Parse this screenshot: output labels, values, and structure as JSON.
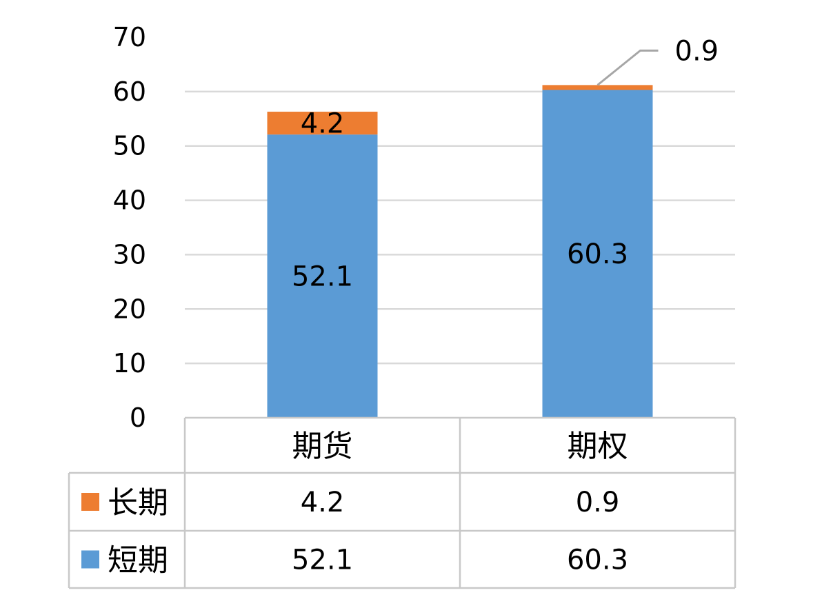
{
  "chart_data": {
    "type": "bar",
    "stacked": true,
    "categories": [
      "期货",
      "期权"
    ],
    "series": [
      {
        "name": "短期",
        "values": [
          52.1,
          60.3
        ],
        "color": "#5B9BD5"
      },
      {
        "name": "长期",
        "values": [
          4.2,
          0.9
        ],
        "color": "#ED7D31"
      }
    ],
    "ylim": [
      0,
      70
    ],
    "yticks": [
      "0",
      "10",
      "20",
      "30",
      "40",
      "50",
      "60",
      "70"
    ],
    "grid": true,
    "data_table": true
  }
}
